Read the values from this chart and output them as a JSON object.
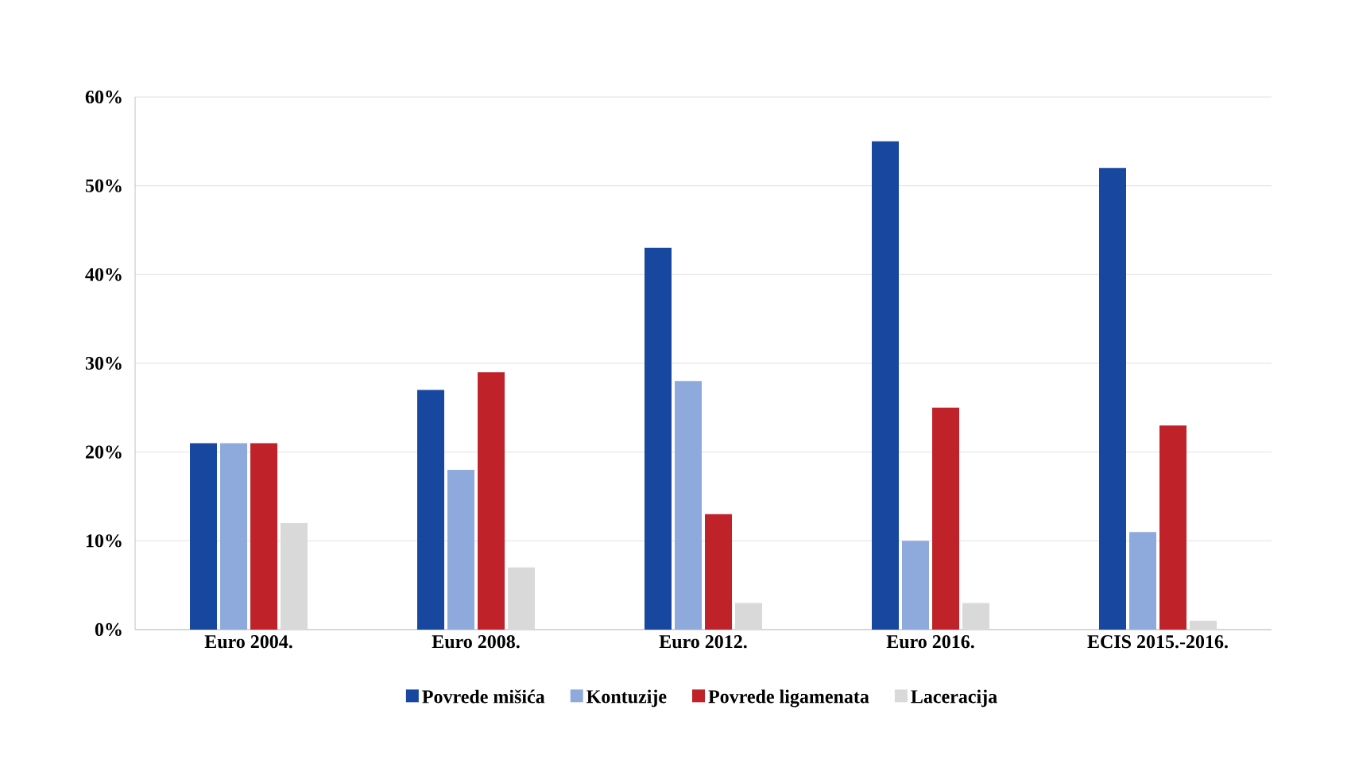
{
  "chart_data": {
    "type": "bar",
    "categories": [
      "Euro 2004.",
      "Euro 2008.",
      "Euro 2012.",
      "Euro 2016.",
      "ECIS 2015.-2016."
    ],
    "series": [
      {
        "name": "Povrede mišića",
        "color": "#17479e",
        "values": [
          21,
          27,
          43,
          55,
          52
        ]
      },
      {
        "name": "Kontuzije",
        "color": "#8eaadc",
        "values": [
          21,
          18,
          28,
          10,
          11
        ]
      },
      {
        "name": "Povrede ligamenata",
        "color": "#c0222a",
        "values": [
          21,
          29,
          13,
          25,
          23
        ]
      },
      {
        "name": "Laceracija",
        "color": "#d9d9d9",
        "values": [
          12,
          7,
          3,
          3,
          1
        ]
      }
    ],
    "ylim": [
      0,
      60
    ],
    "yticks": [
      {
        "value": 0,
        "label": "0%"
      },
      {
        "value": 10,
        "label": "10%"
      },
      {
        "value": 20,
        "label": "20%"
      },
      {
        "value": 30,
        "label": "30%"
      },
      {
        "value": 40,
        "label": "40%"
      },
      {
        "value": 50,
        "label": "50%"
      },
      {
        "value": 60,
        "label": "60%"
      }
    ],
    "grid": "y",
    "legend": "bottom"
  }
}
